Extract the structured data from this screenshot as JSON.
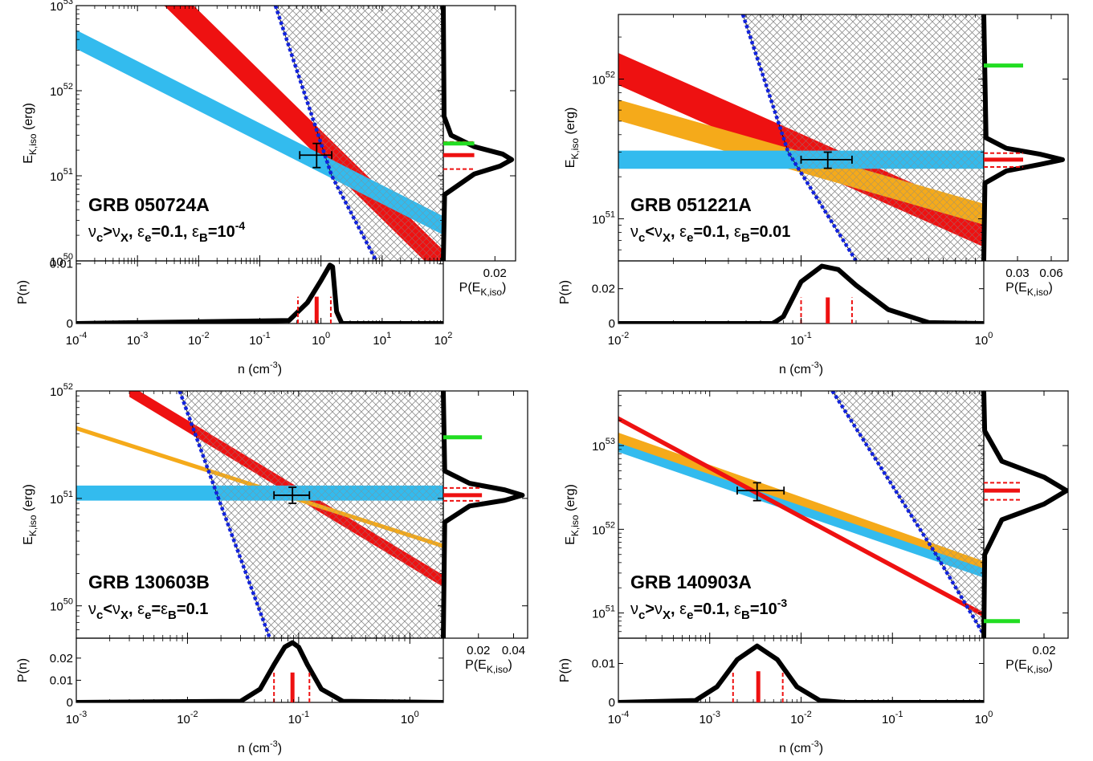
{
  "figure": {
    "colors": {
      "red": "#ee1111",
      "cyan": "#33bbee",
      "orange": "#f5aa1a",
      "blue": "#1122dd",
      "green": "#22dd22",
      "hatch": "#888888",
      "black": "#000000"
    }
  },
  "chart_data": [
    {
      "type": "line",
      "panel": "top-left",
      "title": "GRB 050724A",
      "subtitle": "νc>νX, εe=0.1, εB=10^-4",
      "subtitle_parts": {
        "nu": "ν",
        "c": "c",
        "gt": ">",
        "X": "X",
        "eps": "ε",
        "e": "e",
        "eq1": "=0.1, ",
        "B": "B",
        "eq2": "=10",
        "exp": "-4"
      },
      "ylabel_main": "E",
      "ylabel_sub": "K,iso",
      "ylabel_unit": "(erg)",
      "xlabel": "n (cm",
      "xlabel_exp": "-3",
      "xlabel_close": ")",
      "plabel": "P(n)",
      "pelabel_main": "P(E",
      "pelabel_sub": "K,iso",
      "pelabel_close": ")",
      "x_scale": "log",
      "xlim": [
        0.0001,
        100
      ],
      "y_scale": "log",
      "ylim": [
        1e+50,
        1e+53
      ],
      "x_ticks": [
        {
          "v": 0.0001,
          "e": "-4"
        },
        {
          "v": 0.001,
          "e": "-3"
        },
        {
          "v": 0.01,
          "e": "-2"
        },
        {
          "v": 0.1,
          "e": "-1"
        },
        {
          "v": 1,
          "e": "0"
        },
        {
          "v": 10,
          "e": "1"
        },
        {
          "v": 100,
          "e": "2"
        }
      ],
      "y_ticks": [
        {
          "v": 1e+50,
          "e": "50"
        },
        {
          "v": 1e+51,
          "e": "51"
        },
        {
          "v": 1e+52,
          "e": "52"
        },
        {
          "v": 1e+53,
          "e": "53"
        }
      ],
      "pn_ticks": [
        "0",
        "0.01"
      ],
      "pn_tick_values": [
        0,
        0.01
      ],
      "pn_max": 0.0105,
      "pe_ticks": [
        "0.02"
      ],
      "pe_tick_values": [
        0.02
      ],
      "pe_max": 0.028,
      "constraint_bands": [
        {
          "name": "red",
          "color": "#ee1111",
          "start": [
            0.001,
            3e+53
          ],
          "end": [
            100,
            9e+49
          ],
          "half_width_dex": 0.17
        },
        {
          "name": "cyan",
          "color": "#33bbee",
          "start": [
            0.0001,
            4e+52
          ],
          "end": [
            100,
            2.6e+50
          ],
          "half_width_dex": 0.11
        }
      ],
      "excluded_boundary": [
        [
          0.18,
          1e+53
        ],
        [
          1.5,
          1e+51
        ],
        [
          8,
          1e+50
        ]
      ],
      "best_fit": {
        "n": 0.85,
        "n_err": [
          0.45,
          1.5
        ],
        "E": 1.75e+51,
        "E_err": [
          1.25e+51,
          2.4e+51
        ]
      },
      "p_n_curve": {
        "n": [
          0.0001,
          0.3,
          0.6,
          1.0,
          1.4,
          1.55,
          1.8,
          2.2,
          100
        ],
        "p": [
          0,
          0.0005,
          0.0035,
          0.0072,
          0.0098,
          0.0095,
          0.002,
          0,
          0
        ]
      },
      "p_n_markers": {
        "median": 0.85,
        "low": 0.42,
        "high": 1.45,
        "median_height": 0.0045,
        "bound_height": 0.0045
      },
      "p_e_curve": {
        "E": [
          1e+50,
          6e+50,
          1.05e+51,
          1.3e+51,
          1.55e+51,
          1.8e+51,
          2.2e+51,
          3e+51,
          5e+51,
          1e+53
        ],
        "p": [
          0,
          0.0005,
          0.012,
          0.022,
          0.0265,
          0.023,
          0.012,
          0.003,
          0.0003,
          0
        ]
      },
      "p_e_markers": {
        "median": 1.75e+51,
        "low": 1.2e+51,
        "high": 2.5e+51,
        "width": 0.012
      },
      "green_marker": {
        "E": 2.4e+51,
        "width": 0.012
      }
    },
    {
      "type": "line",
      "panel": "top-right",
      "title": "GRB 051221A",
      "subtitle": "νc<νX, εe=0.1, εB=0.01",
      "subtitle_parts": {
        "nu": "ν",
        "c": "c",
        "gt": "<",
        "X": "X",
        "eps": "ε",
        "e": "e",
        "eq1": "=0.1, ",
        "B": "B",
        "eq2": "=0.01",
        "exp": ""
      },
      "ylabel_main": "E",
      "ylabel_sub": "K,iso",
      "ylabel_unit": "(erg)",
      "xlabel": "n (cm",
      "xlabel_exp": "-3",
      "xlabel_close": ")",
      "plabel": "P(n)",
      "pelabel_main": "P(E",
      "pelabel_sub": "K,iso",
      "pelabel_close": ")",
      "x_scale": "log",
      "xlim": [
        0.01,
        1
      ],
      "y_scale": "log",
      "ylim": [
        5e+50,
        2.9e+52
      ],
      "x_ticks": [
        {
          "v": 0.01,
          "e": "-2"
        },
        {
          "v": 0.1,
          "e": "-1"
        },
        {
          "v": 1,
          "e": "0"
        }
      ],
      "y_ticks": [
        {
          "v": 1e+51,
          "e": "51"
        },
        {
          "v": 1e+52,
          "e": "52"
        }
      ],
      "pn_ticks": [
        "0",
        "0.02"
      ],
      "pn_tick_values": [
        0,
        0.02
      ],
      "pn_max": 0.036,
      "pe_ticks": [
        "0.03",
        "0.06"
      ],
      "pe_tick_values": [
        0.03,
        0.06
      ],
      "pe_max": 0.075,
      "constraint_bands": [
        {
          "name": "red",
          "color": "#ee1111",
          "start": [
            0.01,
            1.18e+52
          ],
          "end": [
            1,
            8.2e+50
          ],
          "half_width_dex": 0.115
        },
        {
          "name": "orange",
          "color": "#f5aa1a",
          "start": [
            0.01,
            6e+51
          ],
          "end": [
            1,
            1.08e+51
          ],
          "half_width_dex": 0.075
        },
        {
          "name": "cyan",
          "color": "#33bbee",
          "start": [
            0.01,
            2.65e+51
          ],
          "end": [
            1,
            2.65e+51
          ],
          "half_width_dex": 0.065
        }
      ],
      "excluded_boundary": [
        [
          0.048,
          2.9e+52
        ],
        [
          0.085,
          3e+51
        ],
        [
          0.2,
          5e+50
        ]
      ],
      "best_fit": {
        "n": 0.14,
        "n_err": [
          0.1,
          0.19
        ],
        "E": 2.65e+51,
        "E_err": [
          2.3e+51,
          3e+51
        ]
      },
      "p_n_curve": {
        "n": [
          0.01,
          0.07,
          0.08,
          0.1,
          0.13,
          0.16,
          0.2,
          0.3,
          0.5,
          1
        ],
        "p": [
          0,
          0,
          0.004,
          0.024,
          0.033,
          0.031,
          0.022,
          0.008,
          0.0005,
          0
        ]
      },
      "p_n_markers": {
        "median": 0.14,
        "low": 0.1,
        "high": 0.19,
        "median_height": 0.015,
        "bound_height": 0.015
      },
      "p_e_curve": {
        "E": [
          5e+50,
          1.8e+51,
          2.2e+51,
          2.45e+51,
          2.65e+51,
          2.9e+51,
          3.2e+51,
          3.8e+51,
          2.9e+52
        ],
        "p": [
          0,
          0.001,
          0.02,
          0.05,
          0.07,
          0.05,
          0.02,
          0.002,
          0
        ]
      },
      "p_e_markers": {
        "median": 2.65e+51,
        "low": 2.35e+51,
        "high": 2.95e+51,
        "width": 0.035
      },
      "green_marker": {
        "E": 1.25e+52,
        "width": 0.035
      }
    },
    {
      "type": "line",
      "panel": "bottom-left",
      "title": "GRB 130603B",
      "subtitle": "νc<νX, εe=εB=0.1",
      "subtitle_parts": {
        "nu": "ν",
        "c": "c",
        "gt": "<",
        "X": "X",
        "eps": "ε",
        "e": "e",
        "eq1": "=",
        "B": "",
        "eq2": "",
        "exp": "",
        "combined": "=εB=0.1"
      },
      "ylabel_main": "E",
      "ylabel_sub": "K,iso",
      "ylabel_unit": "(erg)",
      "xlabel": "n (cm",
      "xlabel_exp": "-3",
      "xlabel_close": ")",
      "plabel": "P(n)",
      "pelabel_main": "P(E",
      "pelabel_sub": "K,iso",
      "pelabel_close": ")",
      "x_scale": "log",
      "xlim": [
        0.001,
        2
      ],
      "y_scale": "log",
      "ylim": [
        5e+49,
        1e+52
      ],
      "x_ticks": [
        {
          "v": 0.001,
          "e": "-3"
        },
        {
          "v": 0.01,
          "e": "-2"
        },
        {
          "v": 0.1,
          "e": "-1"
        },
        {
          "v": 1,
          "e": "0"
        }
      ],
      "y_ticks": [
        {
          "v": 1e+50,
          "e": "50"
        },
        {
          "v": 1e+51,
          "e": "51"
        },
        {
          "v": 1e+52,
          "e": "52"
        }
      ],
      "pn_ticks": [
        "0",
        "0.01",
        "0.02"
      ],
      "pn_tick_values": [
        0,
        0.01,
        0.02
      ],
      "pn_max": 0.029,
      "pe_ticks": [
        "0.02",
        "0.04"
      ],
      "pe_tick_values": [
        0.02,
        0.04
      ],
      "pe_max": 0.048,
      "constraint_bands": [
        {
          "name": "red",
          "color": "#ee1111",
          "start": [
            0.003,
            1e+52
          ],
          "end": [
            2,
            1.7e+50
          ],
          "half_width_dex": 0.055
        },
        {
          "name": "orange",
          "color": "#f5aa1a",
          "start": [
            0.001,
            4.5e+51
          ],
          "end": [
            2,
            3.6e+50
          ],
          "half_width_dex": 0.02
        },
        {
          "name": "cyan",
          "color": "#33bbee",
          "start": [
            0.001,
            1.12e+51
          ],
          "end": [
            2,
            1.12e+51
          ],
          "half_width_dex": 0.07
        }
      ],
      "excluded_boundary": [
        [
          0.0085,
          1e+52
        ],
        [
          0.019,
          1e+51
        ],
        [
          0.055,
          5e+49
        ]
      ],
      "best_fit": {
        "n": 0.088,
        "n_err": [
          0.06,
          0.125
        ],
        "E": 1.07e+51,
        "E_err": [
          9e+50,
          1.27e+51
        ]
      },
      "p_n_curve": {
        "n": [
          0.001,
          0.03,
          0.045,
          0.06,
          0.075,
          0.088,
          0.1,
          0.12,
          0.16,
          0.25,
          2
        ],
        "p": [
          0,
          0.0005,
          0.006,
          0.017,
          0.025,
          0.027,
          0.025,
          0.017,
          0.006,
          0.0005,
          0
        ]
      },
      "p_n_markers": {
        "median": 0.088,
        "low": 0.06,
        "high": 0.125,
        "median_height": 0.0135,
        "bound_height": 0.0135
      },
      "p_e_curve": {
        "E": [
          5e+49,
          6e+50,
          8.5e+50,
          9.6e+50,
          1.07e+51,
          1.2e+51,
          1.38e+51,
          1.8e+51,
          1e+52
        ],
        "p": [
          0,
          0.0008,
          0.015,
          0.035,
          0.045,
          0.035,
          0.015,
          0.0008,
          0
        ]
      },
      "p_e_markers": {
        "median": 1.07e+51,
        "low": 9.5e+50,
        "high": 1.25e+51,
        "width": 0.022
      },
      "green_marker": {
        "E": 3.7e+51,
        "width": 0.022
      }
    },
    {
      "type": "line",
      "panel": "bottom-right",
      "title": "GRB 140903A",
      "subtitle": "νc>νX, εe=0.1, εB=10^-3",
      "subtitle_parts": {
        "nu": "ν",
        "c": "c",
        "gt": ">",
        "X": "X",
        "eps": "ε",
        "e": "e",
        "eq1": "=0.1, ",
        "B": "B",
        "eq2": "=10",
        "exp": "-3"
      },
      "ylabel_main": "E",
      "ylabel_sub": "K,iso",
      "ylabel_unit": "(erg)",
      "xlabel": "n (cm",
      "xlabel_exp": "-3",
      "xlabel_close": ")",
      "plabel": "P(n)",
      "pelabel_main": "P(E",
      "pelabel_sub": "K,iso",
      "pelabel_close": ")",
      "x_scale": "log",
      "xlim": [
        0.0001,
        1
      ],
      "y_scale": "log",
      "ylim": [
        5e+50,
        4.5e+53
      ],
      "x_ticks": [
        {
          "v": 0.0001,
          "e": "-4"
        },
        {
          "v": 0.001,
          "e": "-3"
        },
        {
          "v": 0.01,
          "e": "-2"
        },
        {
          "v": 0.1,
          "e": "-1"
        },
        {
          "v": 1,
          "e": "0"
        }
      ],
      "y_ticks": [
        {
          "v": 1e+51,
          "e": "51"
        },
        {
          "v": 1e+52,
          "e": "52"
        },
        {
          "v": 1e+53,
          "e": "53"
        }
      ],
      "pn_ticks": [
        "0",
        "0.01"
      ],
      "pn_tick_values": [
        0,
        0.01
      ],
      "pn_max": 0.0165,
      "pe_ticks": [
        "0.02"
      ],
      "pe_tick_values": [
        0.02
      ],
      "pe_max": 0.028,
      "constraint_bands": [
        {
          "name": "orange",
          "color": "#f5aa1a",
          "start": [
            0.0001,
            1.2e+53
          ],
          "end": [
            1,
            3.5e+51
          ],
          "half_width_dex": 0.075
        },
        {
          "name": "cyan",
          "color": "#33bbee",
          "start": [
            0.0001,
            9.5e+52
          ],
          "end": [
            1,
            3e+51
          ],
          "half_width_dex": 0.055
        },
        {
          "name": "red",
          "color": "#ee1111",
          "start": [
            0.0001,
            2.1e+53
          ],
          "end": [
            1,
            9.5e+50
          ],
          "half_width_dex": 0.03
        }
      ],
      "excluded_boundary": [
        [
          0.022,
          4.5e+53
        ],
        [
          0.3,
          5e+51
        ],
        [
          1,
          5.5e+50
        ]
      ],
      "best_fit": {
        "n": 0.0033,
        "n_err": [
          0.002,
          0.0065
        ],
        "E": 2.9e+52,
        "E_err": [
          2.2e+52,
          3.6e+52
        ]
      },
      "p_n_curve": {
        "n": [
          0.0001,
          0.0007,
          0.0012,
          0.002,
          0.0033,
          0.0055,
          0.009,
          0.016,
          0.03,
          1
        ],
        "p": [
          0,
          0.0005,
          0.004,
          0.011,
          0.0145,
          0.011,
          0.004,
          0.0005,
          0,
          0
        ]
      },
      "p_n_markers": {
        "median": 0.0034,
        "low": 0.0018,
        "high": 0.0063,
        "median_height": 0.008,
        "bound_height": 0.008
      },
      "p_e_curve": {
        "E": [
          5e+50,
          5e+51,
          1.3e+52,
          2e+52,
          2.9e+52,
          4.2e+52,
          6.5e+52,
          1.5e+53,
          4.5e+53
        ],
        "p": [
          0,
          0.0003,
          0.006,
          0.02,
          0.0275,
          0.02,
          0.006,
          0.0003,
          0
        ]
      },
      "p_e_markers": {
        "median": 2.9e+52,
        "low": 2.25e+52,
        "high": 3.6e+52,
        "width": 0.012
      },
      "green_marker": {
        "E": 8e+50,
        "width": 0.012
      }
    }
  ]
}
